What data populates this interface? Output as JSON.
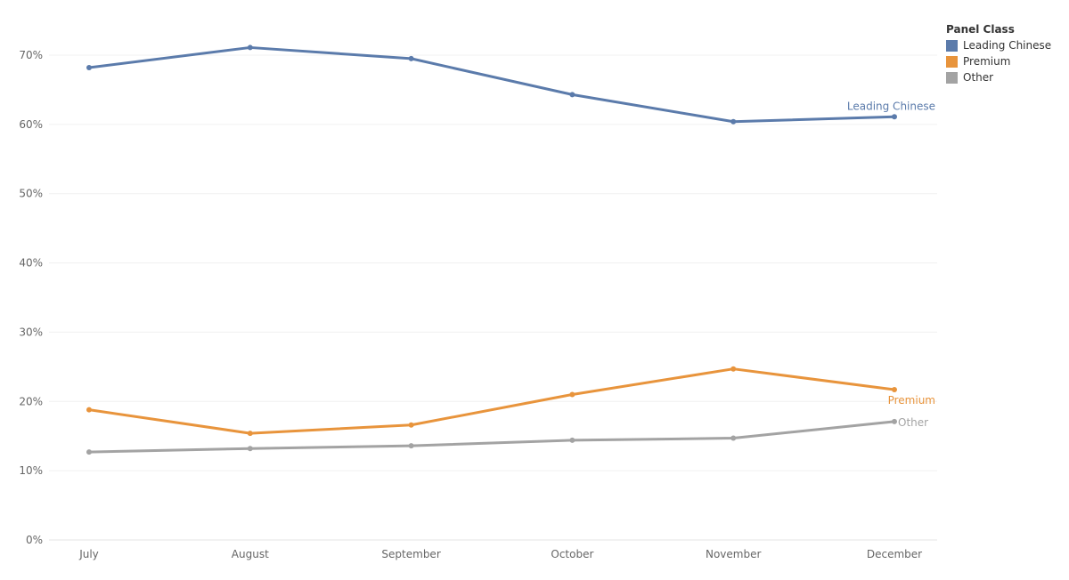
{
  "chart_data": {
    "type": "line",
    "categories": [
      "July",
      "August",
      "September",
      "October",
      "November",
      "December"
    ],
    "y_ticks": [
      "0%",
      "10%",
      "20%",
      "30%",
      "40%",
      "50%",
      "60%",
      "70%"
    ],
    "ylim": [
      0,
      0.75
    ],
    "grid": true,
    "legend": {
      "title": "Panel Class",
      "placement": "top-right",
      "items": [
        "Leading Chinese",
        "Premium",
        "Other"
      ]
    },
    "series": [
      {
        "name": "Leading Chinese",
        "color": "#5b7bab",
        "values": [
          0.682,
          0.711,
          0.695,
          0.643,
          0.604,
          0.611
        ]
      },
      {
        "name": "Premium",
        "color": "#e8943c",
        "values": [
          0.188,
          0.154,
          0.166,
          0.21,
          0.247,
          0.217
        ]
      },
      {
        "name": "Other",
        "color": "#a3a3a3",
        "values": [
          0.127,
          0.132,
          0.136,
          0.144,
          0.147,
          0.171
        ]
      }
    ]
  }
}
